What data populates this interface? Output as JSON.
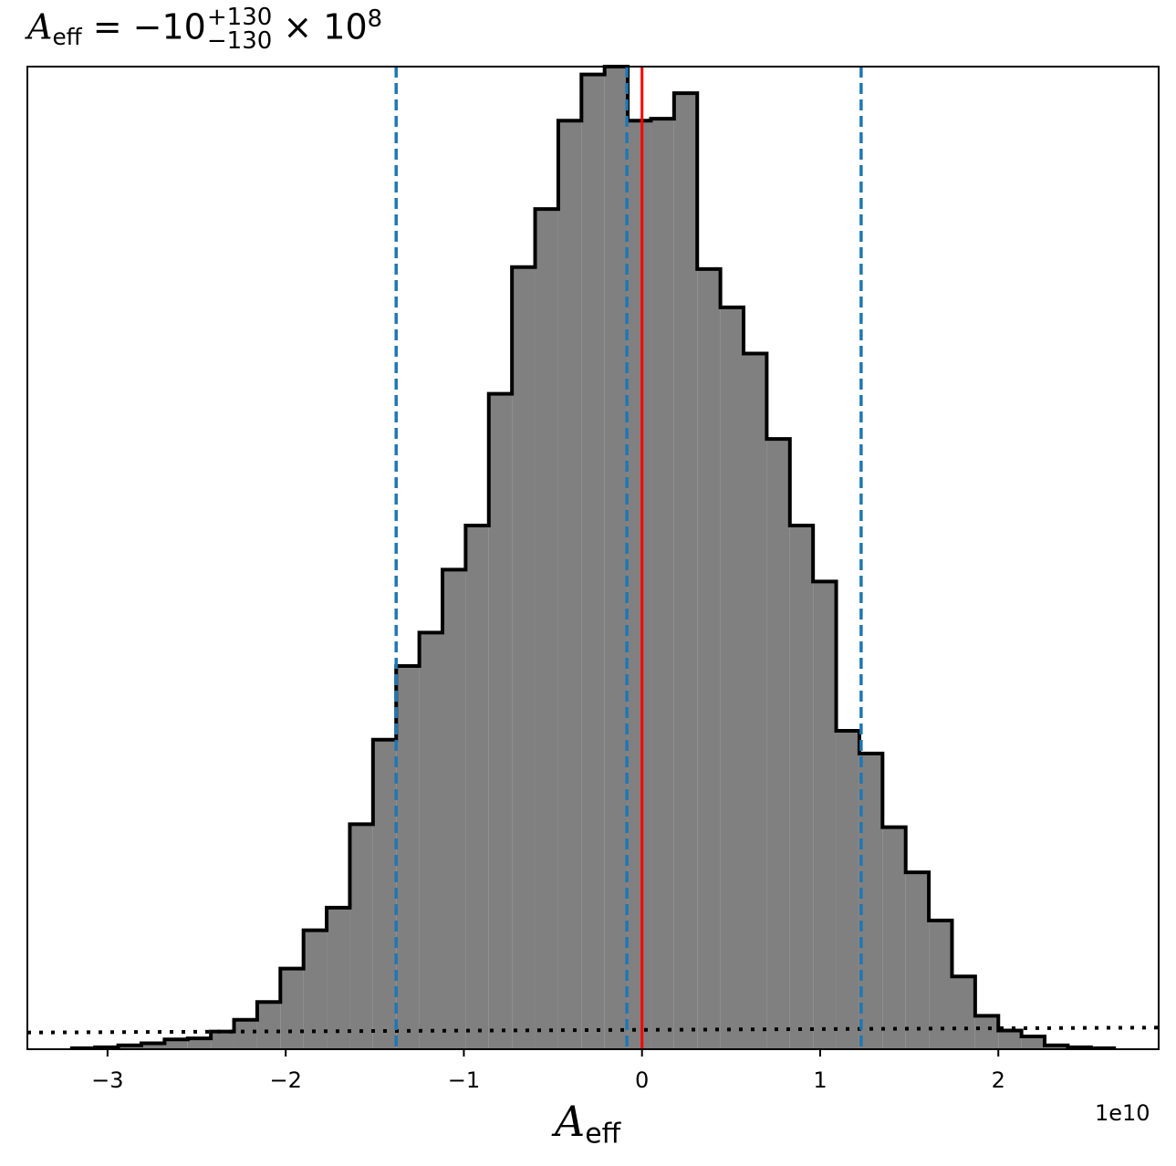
{
  "chart_data": {
    "type": "histogram",
    "title": {
      "symbol": "A",
      "subscript": "eff",
      "equals": "= −10",
      "upper": "+130",
      "lower": "−130",
      "times": "× 10",
      "exponent": "8"
    },
    "xlabel": {
      "symbol": "A",
      "subscript": "eff"
    },
    "x_offset_label": "1e10",
    "x_unit_scale": 10000000000.0,
    "xlim": [
      -3.45,
      2.9
    ],
    "ylim": [
      0,
      1.0
    ],
    "x_ticks": [
      -3,
      -2,
      -1,
      0,
      1,
      2
    ],
    "x_tick_labels": [
      "−3",
      "−2",
      "−1",
      "0",
      "1",
      "2"
    ],
    "bins": {
      "edges": [
        -3.2,
        -3.07,
        -2.94,
        -2.81,
        -2.68,
        -2.55,
        -2.42,
        -2.29,
        -2.16,
        -2.03,
        -1.9,
        -1.77,
        -1.64,
        -1.51,
        -1.38,
        -1.25,
        -1.12,
        -0.99,
        -0.86,
        -0.73,
        -0.6,
        -0.47,
        -0.34,
        -0.21,
        -0.08,
        0.05,
        0.18,
        0.31,
        0.44,
        0.57,
        0.7,
        0.83,
        0.96,
        1.09,
        1.22,
        1.35,
        1.48,
        1.61,
        1.74,
        1.87,
        2.0,
        2.13,
        2.26,
        2.39,
        2.52,
        2.65
      ],
      "heights": [
        0.001,
        0.002,
        0.004,
        0.006,
        0.01,
        0.011,
        0.018,
        0.03,
        0.048,
        0.082,
        0.121,
        0.144,
        0.229,
        0.315,
        0.39,
        0.424,
        0.488,
        0.533,
        0.667,
        0.796,
        0.855,
        0.945,
        0.992,
        1.0,
        0.945,
        0.947,
        0.973,
        0.794,
        0.755,
        0.708,
        0.621,
        0.533,
        0.476,
        0.324,
        0.301,
        0.226,
        0.18,
        0.131,
        0.074,
        0.034,
        0.019,
        0.013,
        0.004,
        0.002,
        0.001
      ]
    },
    "fill_color": "#808080",
    "edge_color": "#000000",
    "vlines": [
      {
        "x": 0.0,
        "color": "#ff0000",
        "style": "solid"
      },
      {
        "x": -1.38,
        "color": "#1f77b4",
        "style": "dashed"
      },
      {
        "x": -0.085,
        "color": "#1f77b4",
        "style": "dashed"
      },
      {
        "x": 1.23,
        "color": "#1f77b4",
        "style": "dashed"
      }
    ],
    "prior_line": {
      "x": [
        -3.45,
        2.9
      ],
      "y": [
        0.017,
        0.022
      ],
      "color": "#000000",
      "style": "dotted"
    }
  }
}
